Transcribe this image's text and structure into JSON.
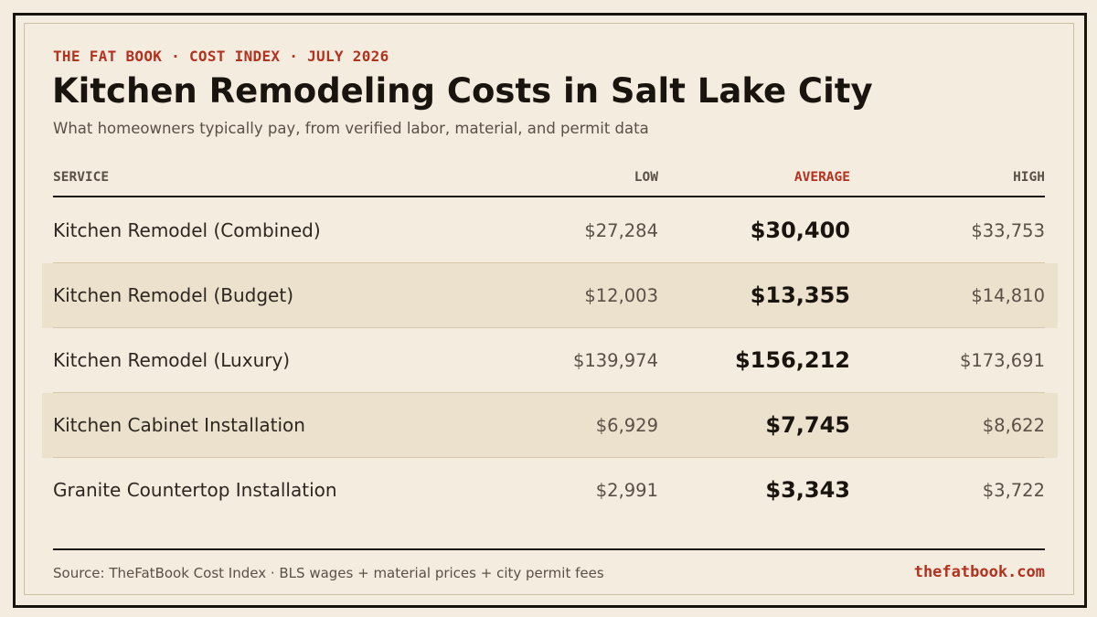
{
  "header": {
    "eyebrow": "THE FAT BOOK · COST INDEX · JULY 2026",
    "title": "Kitchen Remodeling Costs in Salt Lake City",
    "subtitle": "What homeowners typically pay, from verified labor, material, and permit data"
  },
  "table": {
    "columns": {
      "service": "SERVICE",
      "low": "LOW",
      "average": "AVERAGE",
      "high": "HIGH"
    },
    "rows": [
      {
        "service": "Kitchen Remodel (Combined)",
        "low": "$27,284",
        "average": "$30,400",
        "high": "$33,753"
      },
      {
        "service": "Kitchen Remodel (Budget)",
        "low": "$12,003",
        "average": "$13,355",
        "high": "$14,810"
      },
      {
        "service": "Kitchen Remodel (Luxury)",
        "low": "$139,974",
        "average": "$156,212",
        "high": "$173,691"
      },
      {
        "service": "Kitchen Cabinet Installation",
        "low": "$6,929",
        "average": "$7,745",
        "high": "$8,622"
      },
      {
        "service": "Granite Countertop Installation",
        "low": "$2,991",
        "average": "$3,343",
        "high": "$3,722"
      }
    ]
  },
  "footer": {
    "source": "Source: TheFatBook Cost Index · BLS wages + material prices + city permit fees",
    "site": "thefatbook.com"
  },
  "colors": {
    "background": "#f4ecdf",
    "accent": "#b3321f",
    "ink": "#1a140f",
    "shaded_row": "#ece1cd"
  }
}
